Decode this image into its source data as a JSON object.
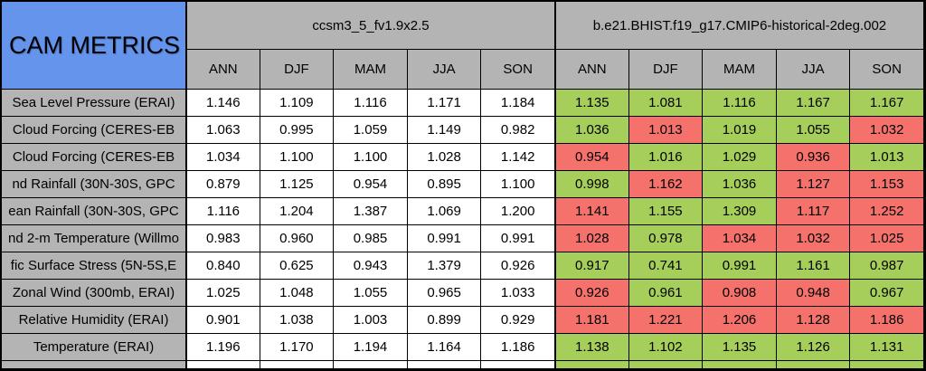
{
  "colors": {
    "title_bg": "#6494ec",
    "header_bg": "#b4b4b4",
    "label_bg": "#b4b4b4",
    "green": "#a6ce5b",
    "red": "#f4716c",
    "plain": "#ffffff",
    "grid_line": "#000000",
    "text": "#000000"
  },
  "chart_data": {
    "type": "table",
    "title": "CAM METRICS",
    "column_groups": [
      "ccsm3_5_fv1.9x2.5",
      "b.e21.BHIST.f19_g17.CMIP6-historical-2deg.002"
    ],
    "seasons": [
      "ANN",
      "DJF",
      "MAM",
      "JJA",
      "SON"
    ],
    "rows": [
      {
        "label": "Sea Level Pressure (ERAI)",
        "model1": [
          "1.146",
          "1.109",
          "1.116",
          "1.171",
          "1.184"
        ],
        "model2": [
          "1.135",
          "1.081",
          "1.116",
          "1.167",
          "1.167"
        ],
        "model2_colors": [
          "green",
          "green",
          "green",
          "green",
          "green"
        ]
      },
      {
        "label": "Cloud Forcing (CERES-EB",
        "model1": [
          "1.063",
          "0.995",
          "1.059",
          "1.149",
          "0.982"
        ],
        "model2": [
          "1.036",
          "1.013",
          "1.019",
          "1.055",
          "1.032"
        ],
        "model2_colors": [
          "green",
          "red",
          "green",
          "green",
          "red"
        ]
      },
      {
        "label": "Cloud Forcing (CERES-EB",
        "model1": [
          "1.034",
          "1.100",
          "1.100",
          "1.028",
          "1.142"
        ],
        "model2": [
          "0.954",
          "1.016",
          "1.029",
          "0.936",
          "1.013"
        ],
        "model2_colors": [
          "red",
          "green",
          "green",
          "red",
          "green"
        ]
      },
      {
        "label": "nd Rainfall (30N-30S, GPC",
        "model1": [
          "0.879",
          "1.125",
          "0.954",
          "0.895",
          "1.100"
        ],
        "model2": [
          "0.998",
          "1.162",
          "1.036",
          "1.127",
          "1.153"
        ],
        "model2_colors": [
          "green",
          "red",
          "green",
          "red",
          "red"
        ]
      },
      {
        "label": "ean Rainfall (30N-30S, GPC",
        "model1": [
          "1.116",
          "1.204",
          "1.387",
          "1.069",
          "1.200"
        ],
        "model2": [
          "1.141",
          "1.155",
          "1.309",
          "1.117",
          "1.252"
        ],
        "model2_colors": [
          "red",
          "green",
          "green",
          "red",
          "red"
        ]
      },
      {
        "label": "nd 2-m Temperature (Willmo",
        "model1": [
          "0.983",
          "0.960",
          "0.985",
          "0.991",
          "0.991"
        ],
        "model2": [
          "1.028",
          "0.978",
          "1.034",
          "1.032",
          "1.025"
        ],
        "model2_colors": [
          "red",
          "green",
          "red",
          "red",
          "red"
        ]
      },
      {
        "label": "fic Surface Stress (5N-5S,E",
        "model1": [
          "0.840",
          "0.625",
          "0.943",
          "1.379",
          "0.926"
        ],
        "model2": [
          "0.917",
          "0.741",
          "0.991",
          "1.161",
          "0.987"
        ],
        "model2_colors": [
          "green",
          "green",
          "green",
          "green",
          "green"
        ]
      },
      {
        "label": "Zonal Wind (300mb, ERAI)",
        "model1": [
          "1.025",
          "1.048",
          "1.055",
          "0.965",
          "1.033"
        ],
        "model2": [
          "0.926",
          "0.961",
          "0.908",
          "0.948",
          "0.967"
        ],
        "model2_colors": [
          "red",
          "green",
          "red",
          "red",
          "green"
        ]
      },
      {
        "label": "Relative Humidity (ERAI)",
        "model1": [
          "0.901",
          "1.038",
          "1.003",
          "0.899",
          "0.929"
        ],
        "model2": [
          "1.181",
          "1.221",
          "1.206",
          "1.128",
          "1.186"
        ],
        "model2_colors": [
          "red",
          "red",
          "red",
          "red",
          "red"
        ]
      },
      {
        "label": "Temperature (ERAI)",
        "model1": [
          "1.196",
          "1.170",
          "1.194",
          "1.164",
          "1.186"
        ],
        "model2": [
          "1.138",
          "1.102",
          "1.135",
          "1.126",
          "1.131"
        ],
        "model2_colors": [
          "green",
          "green",
          "green",
          "green",
          "green"
        ]
      }
    ],
    "partial_row": {
      "label": "",
      "model1_colors": [
        "plain",
        "plain",
        "plain",
        "plain",
        "plain"
      ],
      "model2_colors": [
        "green",
        "green",
        "green",
        "green",
        "green"
      ]
    }
  }
}
